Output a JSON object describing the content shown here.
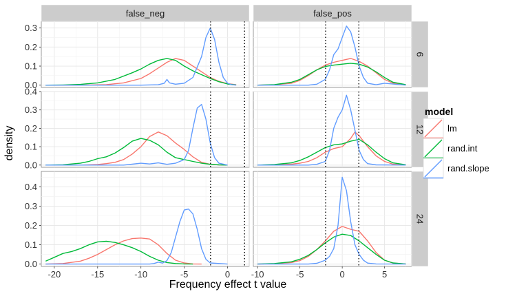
{
  "chart_data": {
    "type": "line",
    "subtype": "density",
    "xlabel": "Frequency effect t value",
    "ylabel": "density",
    "column_facets": [
      "false_neg",
      "false_pos"
    ],
    "row_facets": [
      "6",
      "12",
      "24"
    ],
    "legend": {
      "title": "model",
      "position": "right",
      "entries": [
        {
          "name": "lm",
          "color": "#F8766D"
        },
        {
          "name": "rand.int",
          "color": "#00BA38"
        },
        {
          "name": "rand.slope",
          "color": "#619CFF"
        }
      ]
    },
    "grid": true,
    "reference_lines_x": [
      -1.96,
      1.96
    ],
    "xlim": {
      "false_neg": [
        -21.5,
        2.5
      ],
      "false_pos": [
        -10.5,
        8.2
      ]
    },
    "xticks": {
      "false_neg": [
        "-20",
        "-15",
        "-10",
        "-5",
        "0"
      ],
      "false_pos": [
        "-10",
        "-5",
        "0",
        "5"
      ]
    },
    "ylim": {
      "6": [
        -0.012,
        0.335
      ],
      "12": [
        -0.012,
        0.4
      ],
      "24": [
        -0.012,
        0.48
      ]
    },
    "yticks": {
      "6": [
        "0.0",
        "0.1",
        "0.2",
        "0.3"
      ],
      "12": [
        "0.0",
        "0.1",
        "0.2",
        "0.3",
        "0.4"
      ],
      "24": [
        "0.0",
        "0.1",
        "0.2",
        "0.3",
        "0.4"
      ]
    },
    "panels": [
      {
        "col": "false_neg",
        "row": "6",
        "series": [
          {
            "model": "lm",
            "x": [
              -21,
              -18,
              -16,
              -14,
              -12,
              -10,
              -9,
              -8,
              -7,
              -6,
              -5,
              -4,
              -3,
              -2,
              -1,
              0,
              1
            ],
            "y": [
              0,
              0,
              0.001,
              0.003,
              0.012,
              0.035,
              0.06,
              0.09,
              0.12,
              0.14,
              0.13,
              0.1,
              0.07,
              0.04,
              0.02,
              0.008,
              0.002
            ]
          },
          {
            "model": "rand.int",
            "x": [
              -21,
              -19,
              -17,
              -15,
              -13,
              -11,
              -10,
              -9,
              -8,
              -7,
              -6,
              -5,
              -4,
              -3,
              -2,
              -1,
              0,
              1
            ],
            "y": [
              0,
              0.001,
              0.004,
              0.012,
              0.03,
              0.065,
              0.085,
              0.11,
              0.13,
              0.14,
              0.13,
              0.1,
              0.075,
              0.055,
              0.035,
              0.018,
              0.006,
              0.001
            ]
          },
          {
            "model": "rand.slope",
            "x": [
              -21,
              -10,
              -8,
              -7.3,
              -7,
              -6.7,
              -6,
              -5,
              -4,
              -3,
              -2.5,
              -2,
              -1.5,
              -1,
              -0.5,
              0,
              0.5,
              1
            ],
            "y": [
              0,
              0,
              0.002,
              0.01,
              0.03,
              0.012,
              0.005,
              0.01,
              0.04,
              0.15,
              0.25,
              0.3,
              0.24,
              0.12,
              0.04,
              0.01,
              0.002,
              0
            ]
          }
        ]
      },
      {
        "col": "false_pos",
        "row": "6",
        "series": [
          {
            "model": "lm",
            "x": [
              -10,
              -8,
              -6,
              -5,
              -4,
              -3,
              -2,
              -1,
              0,
              1,
              2,
              3,
              4,
              5,
              6,
              7.5
            ],
            "y": [
              0,
              0.002,
              0.01,
              0.025,
              0.05,
              0.08,
              0.105,
              0.12,
              0.13,
              0.14,
              0.125,
              0.1,
              0.065,
              0.03,
              0.01,
              0.002
            ]
          },
          {
            "model": "rand.int",
            "x": [
              -10,
              -8,
              -6,
              -5,
              -4,
              -3,
              -2,
              -1,
              0,
              1,
              2,
              3,
              4,
              5,
              6,
              7.5
            ],
            "y": [
              0,
              0.003,
              0.015,
              0.03,
              0.055,
              0.08,
              0.098,
              0.105,
              0.11,
              0.115,
              0.11,
              0.095,
              0.07,
              0.04,
              0.015,
              0.003
            ]
          },
          {
            "model": "rand.slope",
            "x": [
              -10,
              -4,
              -3,
              -2,
              -1.5,
              -1,
              -0.5,
              0,
              0.5,
              1,
              1.5,
              2,
              2.5,
              3,
              4,
              5,
              7.5
            ],
            "y": [
              0,
              0,
              0.005,
              0.03,
              0.08,
              0.16,
              0.19,
              0.25,
              0.31,
              0.28,
              0.2,
              0.1,
              0.04,
              0.01,
              0.002,
              0.01,
              0
            ]
          }
        ]
      },
      {
        "col": "false_neg",
        "row": "12",
        "series": [
          {
            "model": "lm",
            "x": [
              -21,
              -17,
              -15,
              -14,
              -13,
              -12,
              -11,
              -10,
              -9,
              -8,
              -7,
              -6,
              -5,
              -4,
              -3,
              -2,
              -1,
              0
            ],
            "y": [
              0,
              0,
              0.003,
              0.008,
              0.015,
              0.03,
              0.06,
              0.1,
              0.155,
              0.18,
              0.16,
              0.12,
              0.085,
              0.045,
              0.015,
              0.004,
              0.001,
              0
            ]
          },
          {
            "model": "rand.int",
            "x": [
              -21,
              -19,
              -17,
              -16,
              -15,
              -14,
              -13,
              -12,
              -11,
              -10,
              -9,
              -8,
              -7,
              -6,
              -5,
              -4,
              -3,
              -2,
              -1,
              0
            ],
            "y": [
              0,
              0.002,
              0.01,
              0.02,
              0.035,
              0.045,
              0.065,
              0.095,
              0.13,
              0.145,
              0.135,
              0.11,
              0.07,
              0.04,
              0.03,
              0.02,
              0.01,
              0.004,
              0.001,
              0
            ]
          },
          {
            "model": "rand.slope",
            "x": [
              -21,
              -12,
              -11,
              -10,
              -9,
              -8,
              -7,
              -6,
              -5,
              -4.5,
              -4,
              -3.5,
              -3,
              -2.5,
              -2,
              -1.5,
              -1,
              0
            ],
            "y": [
              0,
              0,
              0.005,
              0.01,
              0.006,
              0.012,
              0.004,
              0.01,
              0.03,
              0.08,
              0.2,
              0.31,
              0.33,
              0.25,
              0.12,
              0.04,
              0.01,
              0
            ]
          }
        ]
      },
      {
        "col": "false_pos",
        "row": "12",
        "series": [
          {
            "model": "lm",
            "x": [
              -10,
              -8,
              -6,
              -5,
              -4,
              -3,
              -2,
              -1,
              0,
              1,
              1.5,
              2,
              3,
              4,
              5,
              6,
              7.5
            ],
            "y": [
              0,
              0.001,
              0.005,
              0.01,
              0.02,
              0.04,
              0.07,
              0.09,
              0.1,
              0.145,
              0.18,
              0.16,
              0.1,
              0.05,
              0.02,
              0.005,
              0.001
            ]
          },
          {
            "model": "rand.int",
            "x": [
              -10,
              -8,
              -6,
              -5,
              -4,
              -3,
              -2,
              -1,
              0,
              1,
              2,
              3,
              4,
              5,
              6,
              7.5
            ],
            "y": [
              0,
              0.003,
              0.012,
              0.025,
              0.045,
              0.07,
              0.095,
              0.11,
              0.115,
              0.13,
              0.14,
              0.11,
              0.07,
              0.035,
              0.012,
              0.002
            ]
          },
          {
            "model": "rand.slope",
            "x": [
              -10,
              -4,
              -3,
              -2,
              -1.5,
              -1,
              -0.5,
              0,
              0.5,
              1,
              1.5,
              2,
              2.5,
              3,
              4,
              7.5
            ],
            "y": [
              0,
              0,
              0.004,
              0.02,
              0.08,
              0.2,
              0.26,
              0.3,
              0.38,
              0.3,
              0.19,
              0.08,
              0.03,
              0.008,
              0.001,
              0
            ]
          }
        ]
      },
      {
        "col": "false_neg",
        "row": "24",
        "series": [
          {
            "model": "lm",
            "x": [
              -21,
              -19,
              -17,
              -16,
              -15,
              -14,
              -13,
              -12,
              -11,
              -10,
              -9,
              -8,
              -7,
              -6,
              -5,
              -4,
              -3
            ],
            "y": [
              0,
              0.003,
              0.015,
              0.03,
              0.05,
              0.075,
              0.1,
              0.12,
              0.132,
              0.135,
              0.13,
              0.1,
              0.055,
              0.02,
              0.006,
              0.001,
              0
            ]
          },
          {
            "model": "rand.int",
            "x": [
              -21,
              -20,
              -19,
              -18,
              -17,
              -16,
              -15,
              -14,
              -13,
              -12,
              -11,
              -10,
              -9,
              -8,
              -7,
              -6,
              -5,
              -4
            ],
            "y": [
              0.015,
              0.035,
              0.055,
              0.065,
              0.08,
              0.1,
              0.115,
              0.118,
              0.112,
              0.1,
              0.085,
              0.065,
              0.04,
              0.02,
              0.008,
              0.003,
              0.001,
              0
            ]
          },
          {
            "model": "rand.slope",
            "x": [
              -21,
              -9,
              -8.5,
              -8,
              -7.5,
              -7,
              -6.5,
              -6,
              -5.5,
              -5,
              -4.5,
              -4,
              -3.5,
              -3,
              -2.5,
              -2,
              0
            ],
            "y": [
              0,
              0,
              0.003,
              0.01,
              0.005,
              0.018,
              0.06,
              0.14,
              0.22,
              0.28,
              0.285,
              0.26,
              0.18,
              0.08,
              0.025,
              0.006,
              0
            ]
          }
        ]
      },
      {
        "col": "false_pos",
        "row": "24",
        "series": [
          {
            "model": "lm",
            "x": [
              -10,
              -8,
              -6,
              -5,
              -4,
              -3,
              -2,
              -1,
              0,
              1,
              2,
              3,
              4,
              5,
              6,
              7.5
            ],
            "y": [
              0,
              0.002,
              0.008,
              0.018,
              0.04,
              0.075,
              0.12,
              0.17,
              0.195,
              0.18,
              0.17,
              0.12,
              0.06,
              0.02,
              0.005,
              0.001
            ]
          },
          {
            "model": "rand.int",
            "x": [
              -10,
              -8,
              -6,
              -5,
              -4,
              -3,
              -2,
              -1,
              0,
              1,
              2,
              3,
              4,
              5,
              6,
              7.5
            ],
            "y": [
              0,
              0.003,
              0.012,
              0.025,
              0.045,
              0.075,
              0.11,
              0.14,
              0.155,
              0.148,
              0.12,
              0.085,
              0.05,
              0.02,
              0.006,
              0.001
            ]
          },
          {
            "model": "rand.slope",
            "x": [
              -10,
              -4,
              -3,
              -2.5,
              -2,
              -1.5,
              -1,
              -0.5,
              0,
              0.5,
              1,
              1.5,
              2,
              2.5,
              3,
              4,
              7.5
            ],
            "y": [
              0,
              0,
              0.004,
              0.012,
              0.02,
              0.04,
              0.08,
              0.2,
              0.45,
              0.38,
              0.22,
              0.1,
              0.05,
              0.02,
              0.005,
              0.001,
              0
            ]
          }
        ]
      }
    ]
  }
}
